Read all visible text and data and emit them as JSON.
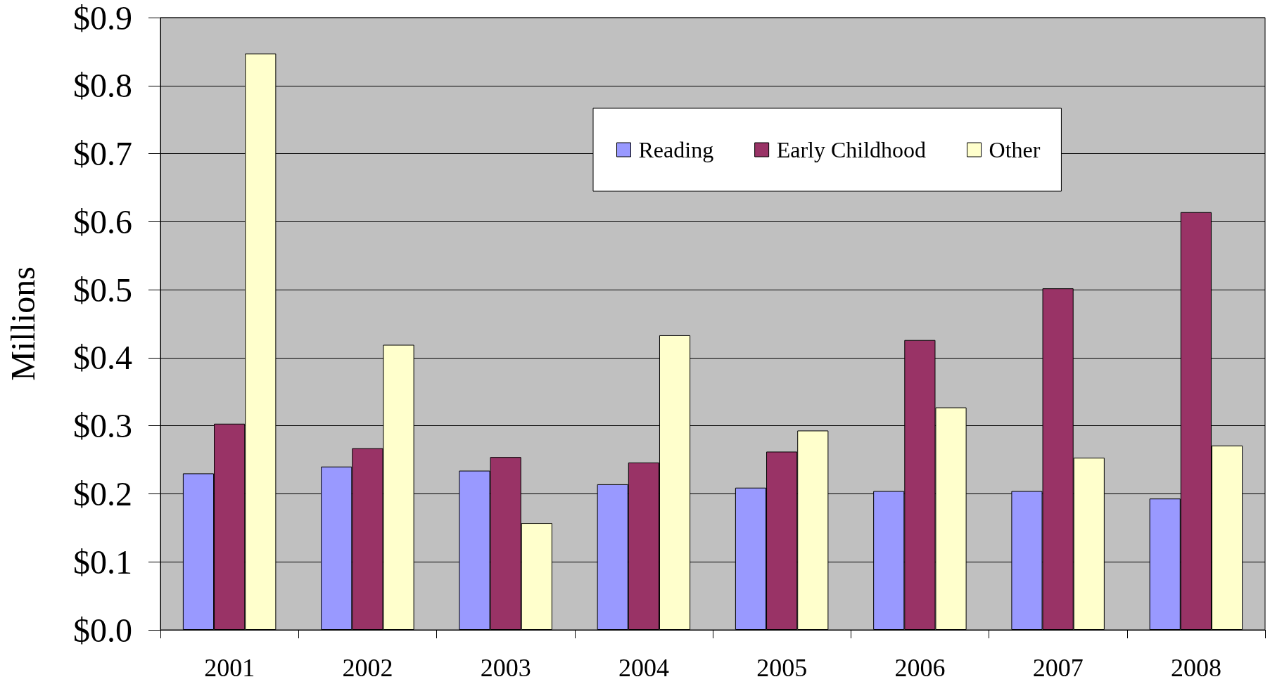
{
  "chart_data": {
    "type": "bar",
    "ylabel": "Millions",
    "categories": [
      "2001",
      "2002",
      "2003",
      "2004",
      "2005",
      "2006",
      "2007",
      "2008"
    ],
    "series": [
      {
        "name": "Reading",
        "color": "#9999ff",
        "values": [
          0.23,
          0.24,
          0.234,
          0.214,
          0.209,
          0.204,
          0.204,
          0.193
        ]
      },
      {
        "name": "Early Childhood",
        "color": "#993366",
        "values": [
          0.303,
          0.267,
          0.254,
          0.246,
          0.262,
          0.426,
          0.502,
          0.614
        ]
      },
      {
        "name": "Other",
        "color": "#ffffcc",
        "values": [
          0.847,
          0.419,
          0.157,
          0.433,
          0.293,
          0.327,
          0.253,
          0.271
        ]
      }
    ],
    "ylim": [
      0,
      0.9
    ],
    "yticks": [
      {
        "value": 0,
        "label": "$0.0"
      },
      {
        "value": 0.1,
        "label": "$0.1"
      },
      {
        "value": 0.2,
        "label": "$0.2"
      },
      {
        "value": 0.3,
        "label": "$0.3"
      },
      {
        "value": 0.4,
        "label": "$0.4"
      },
      {
        "value": 0.5,
        "label": "$0.5"
      },
      {
        "value": 0.6,
        "label": "$0.6"
      },
      {
        "value": 0.7,
        "label": "$0.7"
      },
      {
        "value": 0.8,
        "label": "$0.8"
      },
      {
        "value": 0.9,
        "label": "$0.9"
      }
    ],
    "grid": "y",
    "legend": "top"
  }
}
